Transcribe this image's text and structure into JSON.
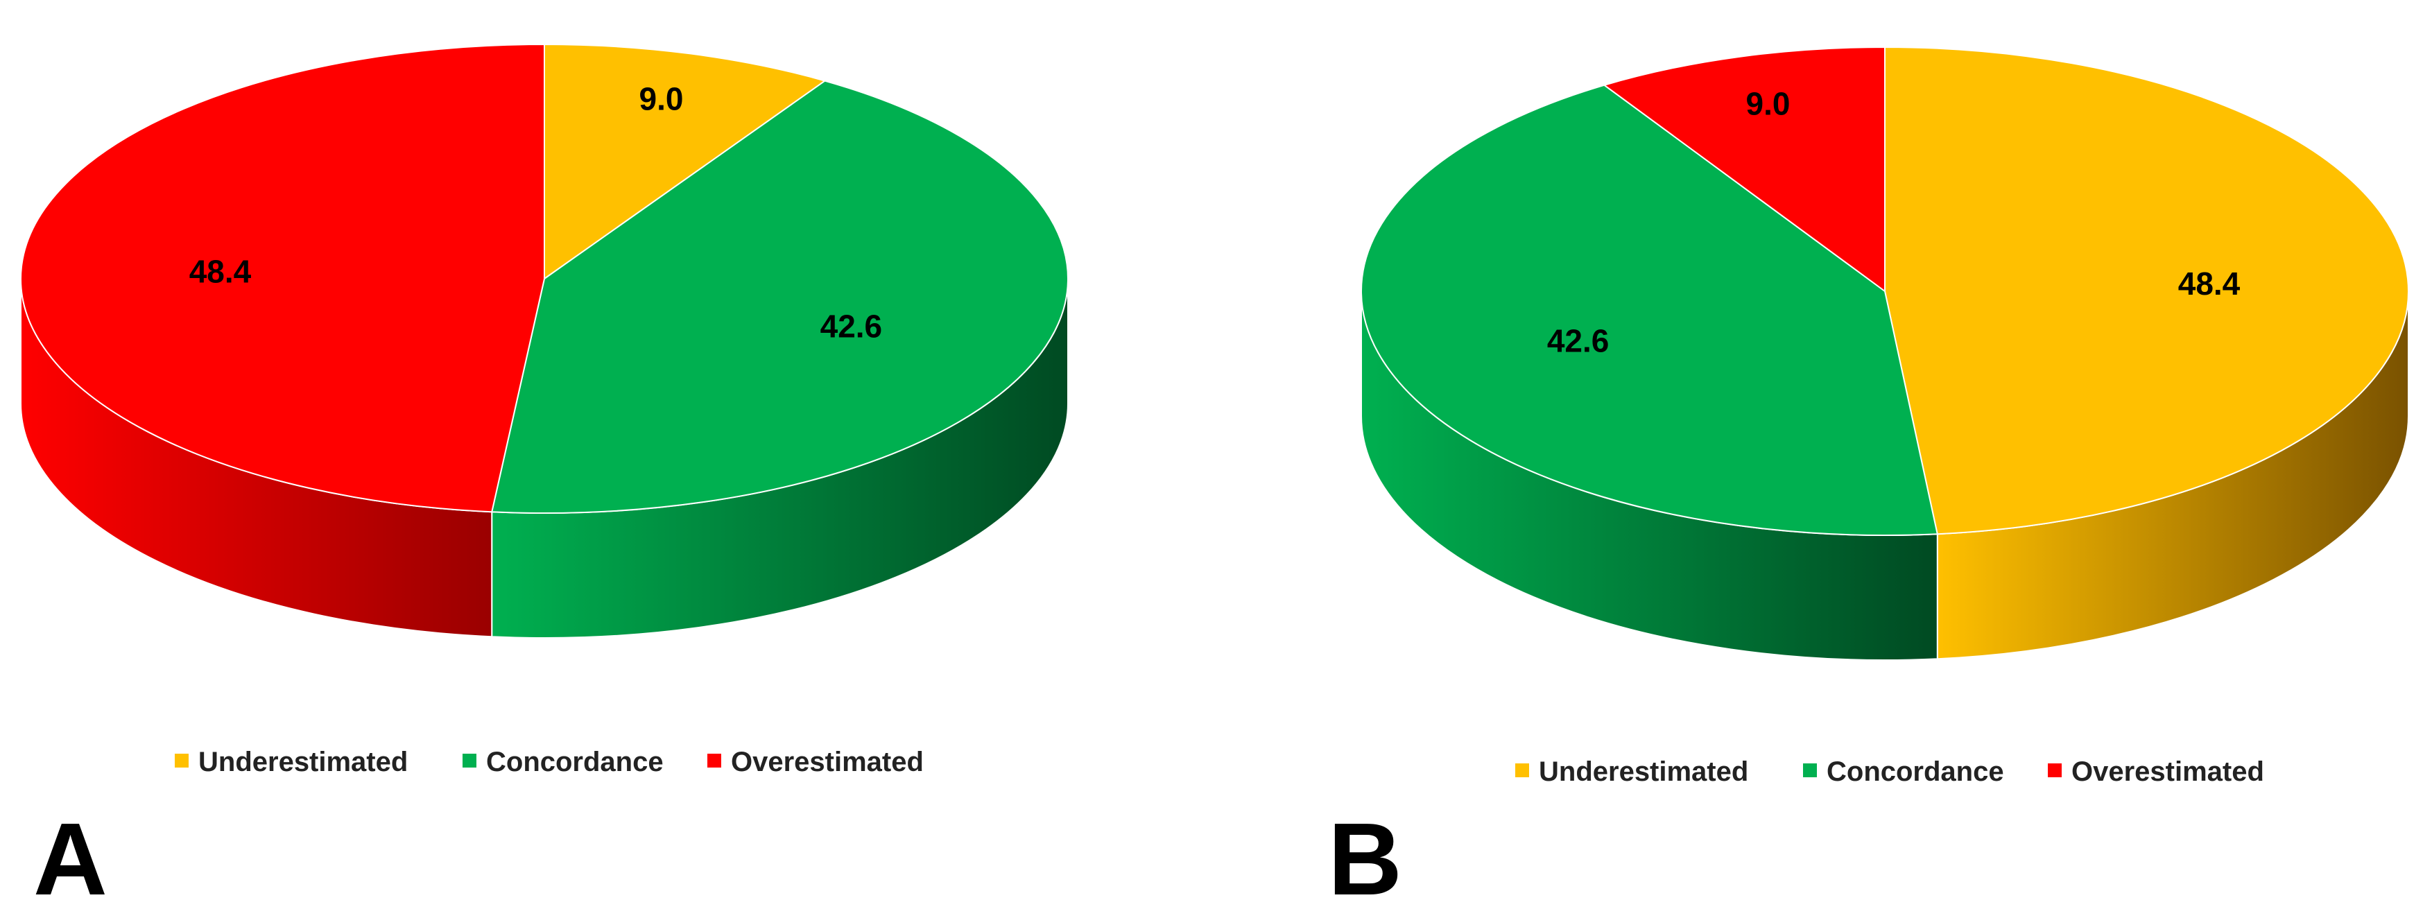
{
  "chart_data": [
    {
      "type": "pie",
      "panel": "A",
      "slices": [
        {
          "name": "Underestimated",
          "value": 9.0,
          "label": "9.0"
        },
        {
          "name": "Concordance",
          "value": 42.6,
          "label": "42.6"
        },
        {
          "name": "Overestimated",
          "value": 48.4,
          "label": "48.4"
        }
      ],
      "legend": [
        "Underestimated",
        "Concordance",
        "Overestimated"
      ],
      "legend_position": "bottom",
      "colors": [
        "#FFC000",
        "#00B050",
        "#FF0000"
      ]
    },
    {
      "type": "pie",
      "panel": "B",
      "slices": [
        {
          "name": "Underestimated",
          "value": 48.4,
          "label": "48.4"
        },
        {
          "name": "Concordance",
          "value": 42.6,
          "label": "42.6"
        },
        {
          "name": "Overestimated",
          "value": 9.0,
          "label": "9.0"
        }
      ],
      "legend": [
        "Underestimated",
        "Concordance",
        "Overestimated"
      ],
      "legend_position": "bottom",
      "colors": [
        "#FFC000",
        "#00B050",
        "#FF0000"
      ]
    }
  ],
  "style": {
    "side_shade": [
      "#7A5200",
      "#004A22",
      "#9A0000"
    ],
    "edge_color": "#ffffff"
  }
}
